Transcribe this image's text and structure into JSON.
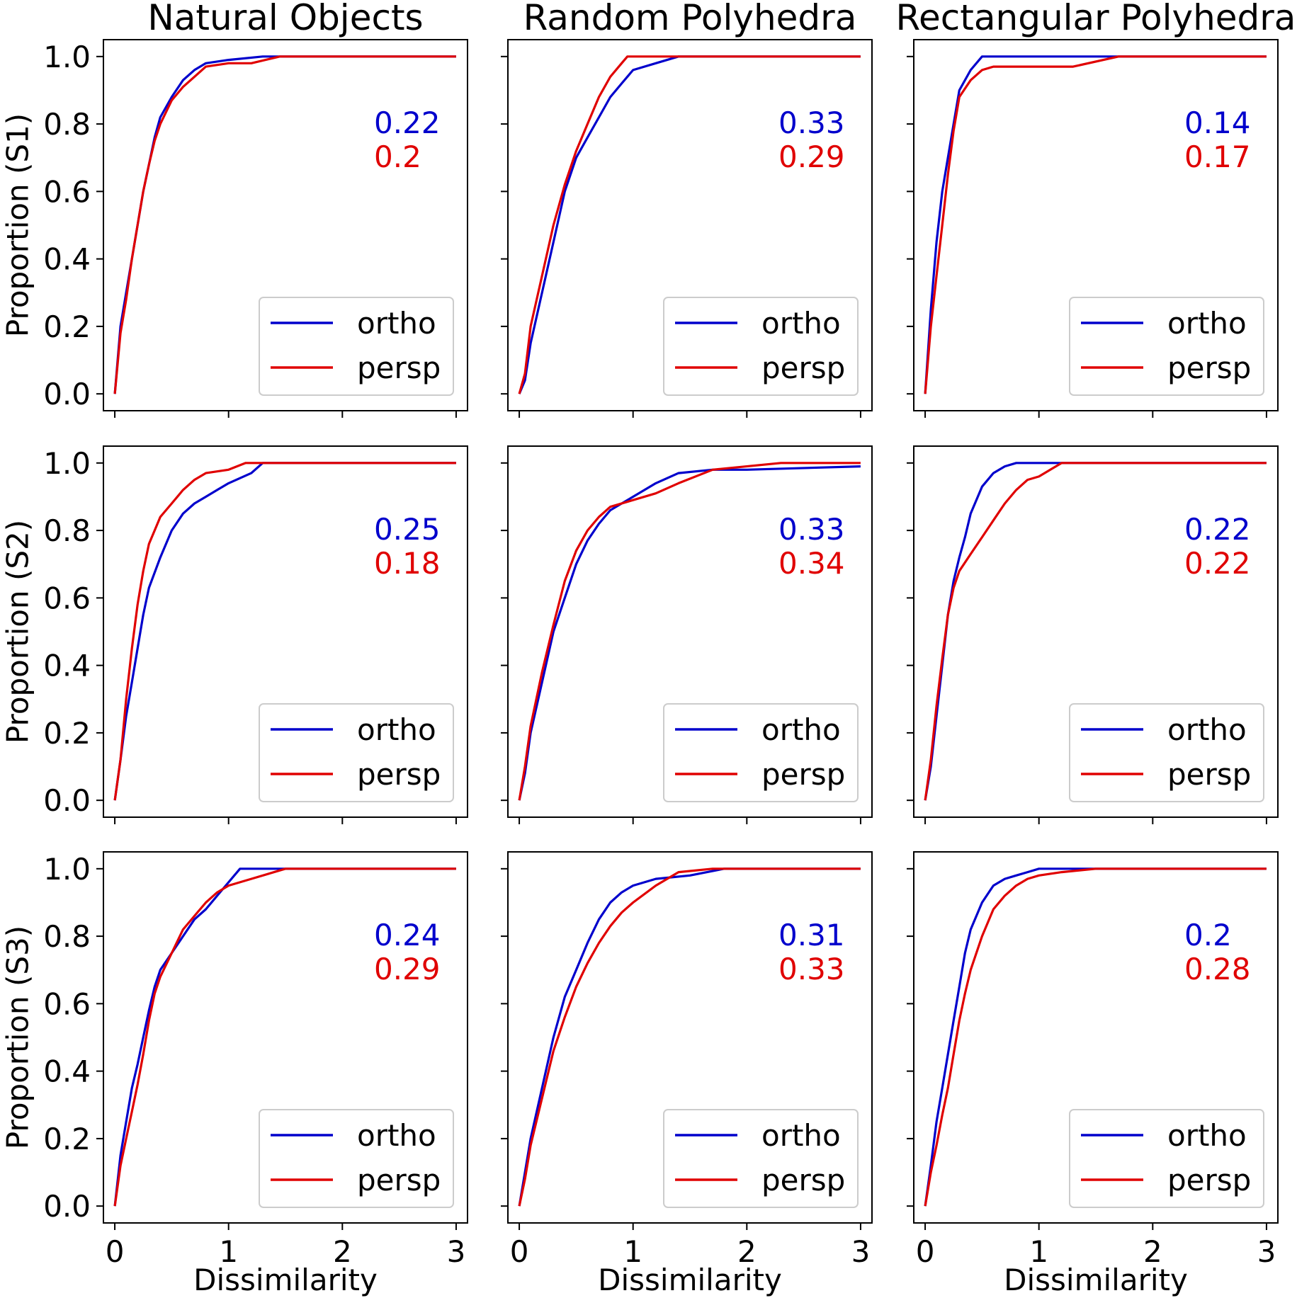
{
  "colors": {
    "ortho": "#0000cc",
    "persp": "#e00000"
  },
  "chart_data": {
    "type": "line",
    "column_titles": [
      "Natural Objects",
      "Random Polyhedra",
      "Rectangular Polyhedra"
    ],
    "row_labels": [
      "Proportion (S1)",
      "Proportion (S2)",
      "Proportion (S3)"
    ],
    "xlabel": "Dissimilarity",
    "xlim": [
      -0.1,
      3.1
    ],
    "ylim": [
      -0.05,
      1.05
    ],
    "x_ticks": [
      0,
      1,
      2,
      3
    ],
    "x_tick_labels": [
      "0",
      "1",
      "2",
      "3"
    ],
    "y_ticks": [
      0,
      0.2,
      0.4,
      0.6,
      0.8,
      1.0
    ],
    "y_tick_labels": [
      "0.0",
      "0.2",
      "0.4",
      "0.6",
      "0.8",
      "1.0"
    ],
    "legend_position": "lower-right",
    "legend": [
      "ortho",
      "persp"
    ],
    "panels": [
      {
        "row": 0,
        "col": 0,
        "stats": [
          "0.22",
          "0.2"
        ],
        "series": [
          {
            "name": "ortho",
            "x": [
              0,
              0.05,
              0.1,
              0.15,
              0.2,
              0.25,
              0.3,
              0.35,
              0.4,
              0.5,
              0.6,
              0.7,
              0.8,
              1.0,
              1.3,
              3.0
            ],
            "y": [
              0,
              0.2,
              0.3,
              0.4,
              0.5,
              0.6,
              0.68,
              0.76,
              0.82,
              0.88,
              0.93,
              0.96,
              0.98,
              0.99,
              1.0,
              1.0
            ]
          },
          {
            "name": "persp",
            "x": [
              0,
              0.05,
              0.1,
              0.15,
              0.2,
              0.25,
              0.3,
              0.35,
              0.4,
              0.5,
              0.6,
              0.7,
              0.8,
              1.0,
              1.2,
              1.45,
              3.0
            ],
            "y": [
              0,
              0.18,
              0.28,
              0.4,
              0.5,
              0.6,
              0.68,
              0.75,
              0.8,
              0.87,
              0.91,
              0.94,
              0.97,
              0.98,
              0.98,
              1.0,
              1.0
            ]
          }
        ]
      },
      {
        "row": 0,
        "col": 1,
        "stats": [
          "0.33",
          "0.29"
        ],
        "series": [
          {
            "name": "ortho",
            "x": [
              0,
              0.05,
              0.1,
              0.2,
              0.3,
              0.4,
              0.5,
              0.6,
              0.7,
              0.8,
              0.9,
              1.0,
              1.2,
              1.4,
              3.0
            ],
            "y": [
              0,
              0.04,
              0.15,
              0.3,
              0.45,
              0.6,
              0.7,
              0.76,
              0.82,
              0.88,
              0.92,
              0.96,
              0.98,
              1.0,
              1.0
            ]
          },
          {
            "name": "persp",
            "x": [
              0,
              0.05,
              0.1,
              0.2,
              0.3,
              0.4,
              0.5,
              0.6,
              0.7,
              0.8,
              0.9,
              0.95,
              3.0
            ],
            "y": [
              0,
              0.06,
              0.2,
              0.35,
              0.5,
              0.62,
              0.72,
              0.8,
              0.88,
              0.94,
              0.98,
              1.0,
              1.0
            ]
          }
        ]
      },
      {
        "row": 0,
        "col": 2,
        "stats": [
          "0.14",
          "0.17"
        ],
        "series": [
          {
            "name": "ortho",
            "x": [
              0,
              0.05,
              0.1,
              0.15,
              0.2,
              0.25,
              0.3,
              0.4,
              0.5,
              3.0
            ],
            "y": [
              0,
              0.25,
              0.45,
              0.6,
              0.7,
              0.8,
              0.9,
              0.96,
              1.0,
              1.0
            ]
          },
          {
            "name": "persp",
            "x": [
              0,
              0.05,
              0.1,
              0.15,
              0.2,
              0.25,
              0.3,
              0.4,
              0.5,
              0.6,
              1.3,
              1.7,
              3.0
            ],
            "y": [
              0,
              0.2,
              0.35,
              0.5,
              0.65,
              0.78,
              0.88,
              0.93,
              0.96,
              0.97,
              0.97,
              1.0,
              1.0
            ]
          }
        ]
      },
      {
        "row": 1,
        "col": 0,
        "stats": [
          "0.25",
          "0.18"
        ],
        "series": [
          {
            "name": "ortho",
            "x": [
              0,
              0.05,
              0.1,
              0.15,
              0.2,
              0.25,
              0.3,
              0.4,
              0.5,
              0.6,
              0.7,
              0.8,
              0.9,
              1.0,
              1.2,
              1.3,
              3.0
            ],
            "y": [
              0,
              0.12,
              0.25,
              0.35,
              0.45,
              0.55,
              0.63,
              0.72,
              0.8,
              0.85,
              0.88,
              0.9,
              0.92,
              0.94,
              0.97,
              1.0,
              1.0
            ]
          },
          {
            "name": "persp",
            "x": [
              0,
              0.05,
              0.1,
              0.15,
              0.2,
              0.25,
              0.3,
              0.35,
              0.4,
              0.5,
              0.6,
              0.7,
              0.8,
              1.0,
              1.15,
              3.0
            ],
            "y": [
              0,
              0.12,
              0.3,
              0.45,
              0.58,
              0.68,
              0.76,
              0.8,
              0.84,
              0.88,
              0.92,
              0.95,
              0.97,
              0.98,
              1.0,
              1.0
            ]
          }
        ]
      },
      {
        "row": 1,
        "col": 1,
        "stats": [
          "0.33",
          "0.34"
        ],
        "series": [
          {
            "name": "ortho",
            "x": [
              0,
              0.05,
              0.1,
              0.2,
              0.3,
              0.4,
              0.5,
              0.6,
              0.7,
              0.8,
              1.0,
              1.2,
              1.4,
              1.7,
              2.0,
              3.0
            ],
            "y": [
              0,
              0.08,
              0.2,
              0.35,
              0.5,
              0.6,
              0.7,
              0.77,
              0.82,
              0.86,
              0.9,
              0.94,
              0.97,
              0.98,
              0.98,
              0.99
            ]
          },
          {
            "name": "persp",
            "x": [
              0,
              0.05,
              0.1,
              0.2,
              0.3,
              0.4,
              0.5,
              0.6,
              0.7,
              0.8,
              1.0,
              1.2,
              1.4,
              1.7,
              2.3,
              3.0
            ],
            "y": [
              0,
              0.1,
              0.22,
              0.38,
              0.52,
              0.65,
              0.74,
              0.8,
              0.84,
              0.87,
              0.89,
              0.91,
              0.94,
              0.98,
              1.0,
              1.0
            ]
          }
        ]
      },
      {
        "row": 1,
        "col": 2,
        "stats": [
          "0.22",
          "0.22"
        ],
        "series": [
          {
            "name": "ortho",
            "x": [
              0,
              0.05,
              0.1,
              0.15,
              0.2,
              0.25,
              0.3,
              0.35,
              0.4,
              0.5,
              0.6,
              0.7,
              0.8,
              1.2,
              3.0
            ],
            "y": [
              0,
              0.1,
              0.25,
              0.4,
              0.55,
              0.65,
              0.72,
              0.78,
              0.85,
              0.93,
              0.97,
              0.99,
              1.0,
              1.0,
              1.0
            ]
          },
          {
            "name": "persp",
            "x": [
              0,
              0.05,
              0.1,
              0.15,
              0.2,
              0.25,
              0.3,
              0.4,
              0.5,
              0.6,
              0.7,
              0.8,
              0.9,
              1.0,
              1.1,
              1.2,
              3.0
            ],
            "y": [
              0,
              0.12,
              0.28,
              0.42,
              0.55,
              0.63,
              0.68,
              0.73,
              0.78,
              0.83,
              0.88,
              0.92,
              0.95,
              0.96,
              0.98,
              1.0,
              1.0
            ]
          }
        ]
      },
      {
        "row": 2,
        "col": 0,
        "stats": [
          "0.24",
          "0.29"
        ],
        "series": [
          {
            "name": "ortho",
            "x": [
              0,
              0.05,
              0.1,
              0.15,
              0.2,
              0.25,
              0.3,
              0.35,
              0.4,
              0.5,
              0.6,
              0.7,
              0.8,
              0.9,
              1.0,
              1.1,
              1.5,
              3.0
            ],
            "y": [
              0,
              0.15,
              0.25,
              0.35,
              0.42,
              0.5,
              0.58,
              0.65,
              0.7,
              0.75,
              0.8,
              0.85,
              0.88,
              0.92,
              0.96,
              1.0,
              1.0,
              1.0
            ]
          },
          {
            "name": "persp",
            "x": [
              0,
              0.05,
              0.1,
              0.15,
              0.2,
              0.25,
              0.3,
              0.35,
              0.4,
              0.5,
              0.6,
              0.7,
              0.8,
              0.9,
              1.0,
              1.2,
              1.5,
              3.0
            ],
            "y": [
              0,
              0.12,
              0.2,
              0.28,
              0.36,
              0.45,
              0.55,
              0.63,
              0.68,
              0.75,
              0.82,
              0.86,
              0.9,
              0.93,
              0.95,
              0.97,
              1.0,
              1.0
            ]
          }
        ]
      },
      {
        "row": 2,
        "col": 1,
        "stats": [
          "0.31",
          "0.33"
        ],
        "series": [
          {
            "name": "ortho",
            "x": [
              0,
              0.05,
              0.1,
              0.2,
              0.3,
              0.4,
              0.5,
              0.6,
              0.7,
              0.8,
              0.9,
              1.0,
              1.2,
              1.5,
              1.8,
              3.0
            ],
            "y": [
              0,
              0.1,
              0.2,
              0.35,
              0.5,
              0.62,
              0.7,
              0.78,
              0.85,
              0.9,
              0.93,
              0.95,
              0.97,
              0.98,
              1.0,
              1.0
            ]
          },
          {
            "name": "persp",
            "x": [
              0,
              0.05,
              0.1,
              0.2,
              0.3,
              0.4,
              0.5,
              0.6,
              0.7,
              0.8,
              0.9,
              1.0,
              1.2,
              1.4,
              1.7,
              3.0
            ],
            "y": [
              0,
              0.08,
              0.18,
              0.32,
              0.46,
              0.56,
              0.65,
              0.72,
              0.78,
              0.83,
              0.87,
              0.9,
              0.95,
              0.99,
              1.0,
              1.0
            ]
          }
        ]
      },
      {
        "row": 2,
        "col": 2,
        "stats": [
          "0.2",
          "0.28"
        ],
        "series": [
          {
            "name": "ortho",
            "x": [
              0,
              0.05,
              0.1,
              0.15,
              0.2,
              0.25,
              0.3,
              0.35,
              0.4,
              0.5,
              0.6,
              0.7,
              0.8,
              0.9,
              1.0,
              1.5,
              3.0
            ],
            "y": [
              0,
              0.12,
              0.25,
              0.35,
              0.45,
              0.55,
              0.65,
              0.75,
              0.82,
              0.9,
              0.95,
              0.97,
              0.98,
              0.99,
              1.0,
              1.0,
              1.0
            ]
          },
          {
            "name": "persp",
            "x": [
              0,
              0.05,
              0.1,
              0.15,
              0.2,
              0.25,
              0.3,
              0.35,
              0.4,
              0.5,
              0.6,
              0.7,
              0.8,
              0.9,
              1.0,
              1.2,
              1.5,
              3.0
            ],
            "y": [
              0,
              0.1,
              0.18,
              0.27,
              0.35,
              0.45,
              0.55,
              0.63,
              0.7,
              0.8,
              0.88,
              0.92,
              0.95,
              0.97,
              0.98,
              0.99,
              1.0,
              1.0
            ]
          }
        ]
      }
    ]
  }
}
